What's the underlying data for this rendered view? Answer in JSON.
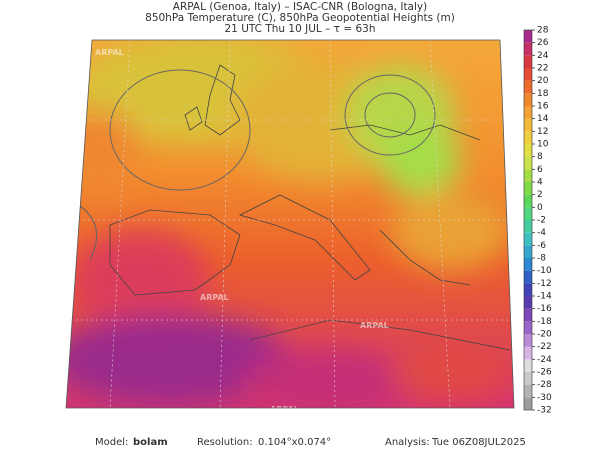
{
  "header": {
    "line1": "ARPAL (Genoa, Italy)  –  ISAC-CNR (Bologna, Italy)",
    "line2": "850hPa Temperature (C), 850hPa Geopotential Heights (m)",
    "line3": "21 UTC Thu 10 JUL  –  τ = 63h"
  },
  "map": {
    "watermark": "ARPAL"
  },
  "colorbar": {
    "ticks": [
      -32,
      -30,
      -28,
      -26,
      -24,
      -22,
      -20,
      -18,
      -16,
      -14,
      -12,
      -10,
      -8,
      -6,
      -4,
      -2,
      0,
      2,
      4,
      6,
      8,
      10,
      12,
      14,
      16,
      18,
      20,
      22,
      24,
      26,
      28
    ],
    "colors": [
      "#9e9e9e",
      "#b3b3b3",
      "#c9c9c9",
      "#dcdcdc",
      "#d8b3e6",
      "#b98ad6",
      "#9a64c6",
      "#7b46b8",
      "#5a3ab0",
      "#3f45b5",
      "#2f62c4",
      "#2f86d1",
      "#35a6cf",
      "#3cc1c0",
      "#45cfa0",
      "#4fd67e",
      "#5ad65a",
      "#7fdb48",
      "#a6df45",
      "#c8e24a",
      "#e2df45",
      "#eed03e",
      "#f3b93a",
      "#f3a034",
      "#f0862e",
      "#ec6a2b",
      "#e44d31",
      "#d8383f",
      "#c82f6a",
      "#a92a8c"
    ]
  },
  "footer": {
    "model_label": "Model:",
    "model": "bolam",
    "resolution_label": "Resolution:",
    "resolution": "0.104°x0.074°",
    "analysis_label": "Analysis:",
    "analysis": "Tue 06Z08JUL2025"
  }
}
